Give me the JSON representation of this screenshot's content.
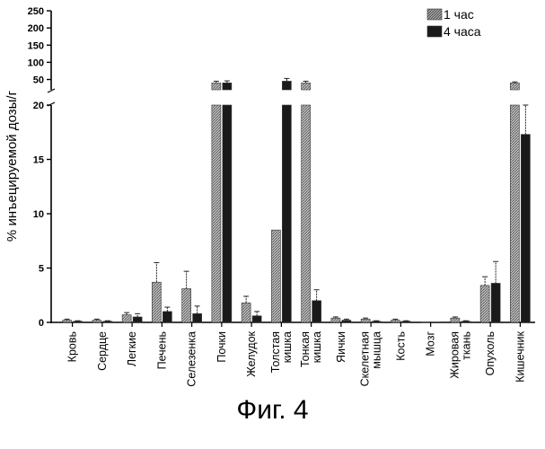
{
  "figure_caption": "Фиг. 4",
  "chart_data": {
    "type": "bar",
    "title": "",
    "xlabel": "",
    "ylabel": "% инъецируемой дозы/г",
    "axis_break": true,
    "ylim_lower": [
      0,
      20
    ],
    "ylim_upper": [
      20,
      250
    ],
    "yticks_lower": [
      "0",
      "5",
      "10",
      "15",
      "20"
    ],
    "yticks_upper": [
      "50",
      "100",
      "150",
      "200",
      "250"
    ],
    "legend_position": "top-right",
    "categories": [
      [
        "Кровь"
      ],
      [
        "Сердце"
      ],
      [
        "Легкие"
      ],
      [
        "Печень"
      ],
      [
        "Селезенка"
      ],
      [
        "Почки"
      ],
      [
        "Желудок"
      ],
      [
        "Толстая",
        "кишка"
      ],
      [
        "Тонкая",
        "кишка"
      ],
      [
        "Яички"
      ],
      [
        "Скелетная",
        "мышца"
      ],
      [
        "Кость"
      ],
      [
        "Мозг"
      ],
      [
        "Жировая",
        "ткань"
      ],
      [
        "Опухоль"
      ],
      [
        "Кишечник"
      ]
    ],
    "series": [
      {
        "name": "1 час",
        "pattern": "hatched",
        "values": [
          0.2,
          0.2,
          0.7,
          3.7,
          3.1,
          40,
          1.8,
          8.5,
          40,
          0.4,
          0.3,
          0.2,
          0.05,
          0.4,
          3.4,
          40
        ],
        "errors": [
          0.1,
          0.1,
          0.2,
          1.8,
          1.6,
          5,
          0.6,
          0,
          5,
          0.1,
          0.1,
          0.1,
          0,
          0.1,
          0.8,
          3
        ]
      },
      {
        "name": "4 часа",
        "pattern": "dark",
        "values": [
          0.1,
          0.1,
          0.5,
          1.0,
          0.8,
          40,
          0.6,
          45,
          2.0,
          0.2,
          0.1,
          0.1,
          0.02,
          0.1,
          3.6,
          17.3
        ],
        "errors": [
          0.05,
          0.05,
          0.3,
          0.4,
          0.7,
          6,
          0.4,
          8,
          1.0,
          0.1,
          0.05,
          0.05,
          0,
          0.05,
          2.0,
          3
        ]
      }
    ]
  }
}
